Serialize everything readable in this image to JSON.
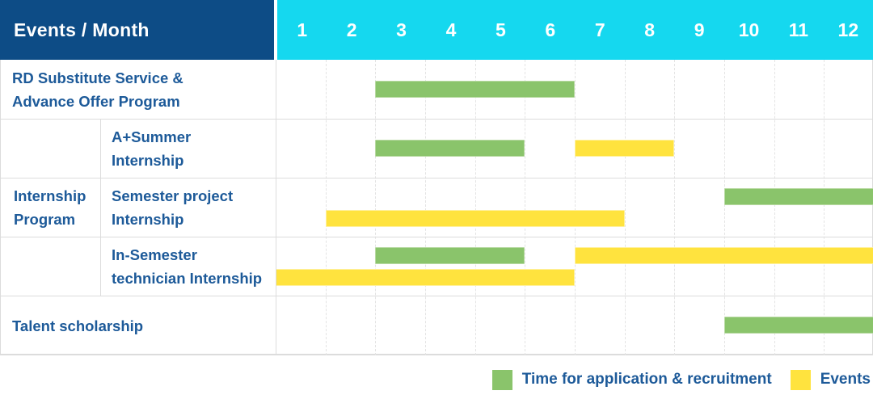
{
  "colors": {
    "header_navy": "#0d4c86",
    "header_cyan": "#15d8ef",
    "label_blue": "#1d5a99",
    "bar_green": "#8ac46b",
    "bar_green_edge": "#b7d9a1",
    "bar_yellow": "#ffe33e",
    "bar_yellow_edge": "#fff09b",
    "grid_line": "#e3e3e3",
    "row_line": "#dcdcdc"
  },
  "header": {
    "title": "Events / Month",
    "months": [
      "1",
      "2",
      "3",
      "4",
      "5",
      "6",
      "7",
      "8",
      "9",
      "10",
      "11",
      "12"
    ]
  },
  "labels": {
    "row1": [
      "RD Substitute Service &",
      "Advance Offer Program"
    ],
    "group": [
      "Internship",
      "Program"
    ],
    "row2": [
      "A+Summer",
      "Internship"
    ],
    "row3": [
      "Semester project",
      "Internship"
    ],
    "row4": [
      "In-Semester",
      "technician Internship"
    ],
    "row5": [
      "Talent scholarship"
    ]
  },
  "legend": {
    "green_label": "Time for application & recruitment",
    "yellow_label": "Events"
  },
  "chart_data": {
    "type": "gantt",
    "title": "Events / Month",
    "x_unit": "month",
    "x_range": [
      1,
      12
    ],
    "grid": true,
    "legend_position": "bottom-right",
    "legend": [
      {
        "key": "green",
        "label": "Time for application & recruitment",
        "color": "#8ac46b"
      },
      {
        "key": "yellow",
        "label": "Events",
        "color": "#ffe33e"
      }
    ],
    "rows": [
      {
        "group": "",
        "label": "RD Substitute Service & Advance Offer Program",
        "bars": [
          {
            "type": "green",
            "start_month": 3,
            "end_month": 6,
            "lane": "center"
          }
        ]
      },
      {
        "group": "Internship Program",
        "label": "A+Summer Internship",
        "bars": [
          {
            "type": "green",
            "start_month": 3,
            "end_month": 5,
            "lane": "center"
          },
          {
            "type": "yellow",
            "start_month": 7,
            "end_month": 8,
            "lane": "center"
          }
        ]
      },
      {
        "group": "Internship Program",
        "label": "Semester project Internship",
        "bars": [
          {
            "type": "green",
            "start_month": 10,
            "end_month": 12,
            "lane": "top"
          },
          {
            "type": "yellow",
            "start_month": 2,
            "end_month": 7,
            "lane": "bottom"
          }
        ]
      },
      {
        "group": "Internship Program",
        "label": "In-Semester technician Internship",
        "bars": [
          {
            "type": "green",
            "start_month": 3,
            "end_month": 5,
            "lane": "top"
          },
          {
            "type": "yellow",
            "start_month": 7,
            "end_month": 12,
            "lane": "top"
          },
          {
            "type": "yellow",
            "start_month": 1,
            "end_month": 6,
            "lane": "bottom"
          }
        ]
      },
      {
        "group": "",
        "label": "Talent scholarship",
        "bars": [
          {
            "type": "green",
            "start_month": 10,
            "end_month": 12,
            "lane": "center"
          }
        ]
      }
    ]
  }
}
